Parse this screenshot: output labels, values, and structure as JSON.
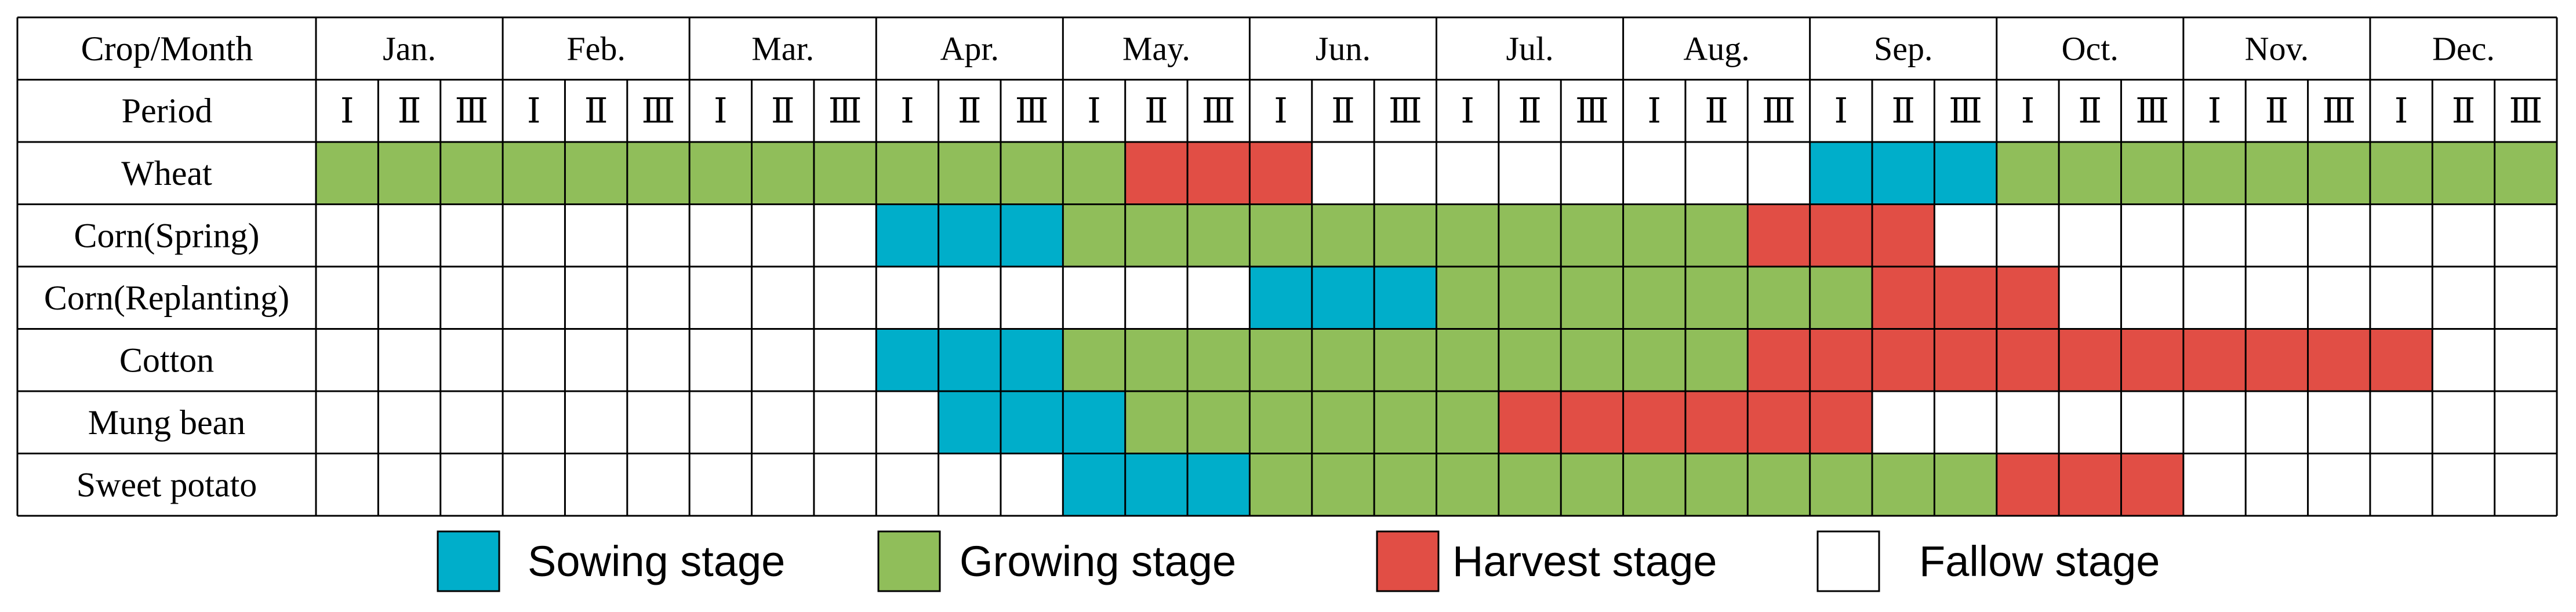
{
  "chart_data": {
    "type": "table",
    "header_label": "Crop/Month",
    "period_label": "Period",
    "months": [
      "Jan.",
      "Feb.",
      "Mar.",
      "Apr.",
      "May.",
      "Jun.",
      "Jul.",
      "Aug.",
      "Sep.",
      "Oct.",
      "Nov.",
      "Dec."
    ],
    "periods": [
      "Ⅰ",
      "Ⅱ",
      "Ⅲ"
    ],
    "stages": {
      "S": {
        "label": "Sowing stage",
        "color": "#00AECA"
      },
      "G": {
        "label": "Growing stage",
        "color": "#90BE5A"
      },
      "H": {
        "label": "Harvest stage",
        "color": "#E14E45"
      },
      "F": {
        "label": "Fallow stage",
        "color": "#FFFFFF"
      }
    },
    "legend_order": [
      "S",
      "G",
      "H",
      "F"
    ],
    "crops": [
      {
        "name": "Wheat",
        "stages": "GGGGGGGGGGGGGHHHFFFFFFFFSSSGGGGGGGGG"
      },
      {
        "name": "Corn(Spring)",
        "stages": "FFFFFFFFFSSSGGGGGGGGGGGHHHFFFFFFFFFF"
      },
      {
        "name": "Corn(Replanting)",
        "stages": "FFFFFFFFFFFFFFFSSSGGGGGGGHHHFFFFFFFF"
      },
      {
        "name": "Cotton",
        "stages": "FFFFFFFFFSSSGGGGGGGGGGGHHHHHHHHHHHFF"
      },
      {
        "name": "Mung bean",
        "stages": "FFFFFFFFFFSSSGGGGGGHHHHHHFFFFFFFFFFF"
      },
      {
        "name": "Sweet potato",
        "stages": "FFFFFFFFFFFFSSSGGGGGGGGGGGGHHHFFFFFF"
      }
    ]
  }
}
